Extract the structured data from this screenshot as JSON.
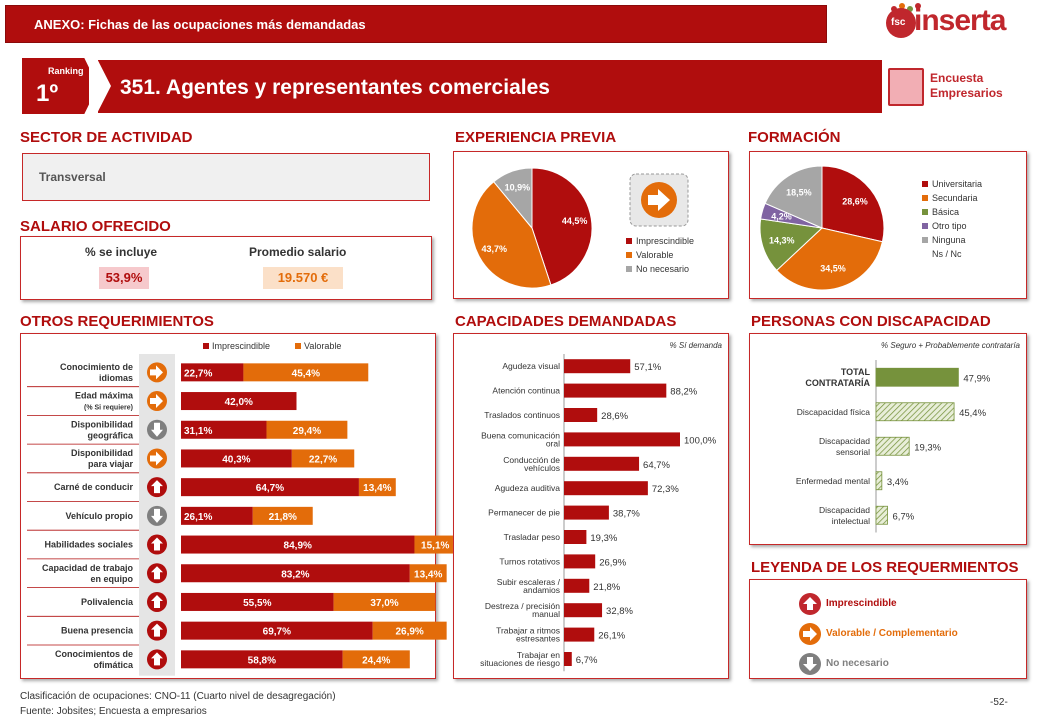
{
  "header": {
    "annex": "ANEXO: Fichas de las ocupaciones más demandadas",
    "logo": "inserta",
    "logo_sub": "fsc"
  },
  "ranking": {
    "label": "Ranking",
    "value": "1º"
  },
  "title": "351. Agentes y representantes comerciales",
  "encuesta": {
    "line1": "Encuesta",
    "line2": "Empresarios"
  },
  "sections": {
    "sector": "SECTOR DE ACTIVIDAD",
    "salario": "SALARIO OFRECIDO",
    "otros": "OTROS REQUERIMIENTOS",
    "experiencia": "EXPERIENCIA PREVIA",
    "formacion": "FORMACIÓN",
    "capacidades": "CAPACIDADES DEMANDADAS",
    "discapacidad": "PERSONAS CON DISCAPACIDAD",
    "leyenda": "LEYENDA DE LOS REQUERMIENTOS"
  },
  "sector_value": "Transversal",
  "salario": {
    "pct_label": "% se incluye",
    "pct_value": "53,9%",
    "avg_label": "Promedio salario",
    "avg_value": "19.570 €"
  },
  "colors": {
    "red": "#b00d0d",
    "orange": "#e36c0a",
    "gray": "#7f7f7f",
    "green": "#76923c",
    "purple": "#8064a2",
    "lightgray": "#a6a6a6"
  },
  "chart_data": [
    {
      "type": "pie",
      "id": "experiencia",
      "labels": [
        "Imprescindible",
        "Valorable",
        "No necesario"
      ],
      "values": [
        44.5,
        43.7,
        10.9
      ],
      "value_labels": [
        "44,5%",
        "43,7%",
        "10,9%"
      ]
    },
    {
      "type": "pie",
      "id": "formacion",
      "labels": [
        "Universitaria",
        "Secundaria",
        "Básica",
        "Otro tipo",
        "Ninguna",
        "Ns / Nc"
      ],
      "values": [
        28.6,
        34.5,
        14.3,
        4.2,
        18.5,
        0
      ],
      "value_labels": [
        "28,6%",
        "34,5%",
        "14,3%",
        "4,2%",
        "18,5%",
        ""
      ]
    },
    {
      "type": "bar",
      "id": "otros",
      "legend": [
        "Imprescindible",
        "Valorable"
      ],
      "categories": [
        [
          "Conocimiento de",
          "idiomas"
        ],
        [
          "Edad máxima",
          "(% Si requiere)"
        ],
        [
          "Disponibilidad",
          "geográfica"
        ],
        [
          "Disponibilidad",
          "para viajar"
        ],
        [
          "Carné de conducir"
        ],
        [
          "Vehículo propio"
        ],
        [
          "Habilidades sociales"
        ],
        [
          "Capacidad de trabajo",
          "en equipo"
        ],
        [
          "Polivalencia"
        ],
        [
          "Buena presencia"
        ],
        [
          "Conocimientos de",
          "ofimática"
        ]
      ],
      "imprescindible": [
        22.7,
        42.0,
        31.1,
        40.3,
        64.7,
        26.1,
        84.9,
        83.2,
        55.5,
        69.7,
        58.8
      ],
      "valorable": [
        45.4,
        null,
        29.4,
        22.7,
        13.4,
        21.8,
        15.1,
        13.4,
        37.0,
        26.9,
        24.4
      ],
      "imp_labels": [
        "22,7%",
        "42,0%",
        "31,1%",
        "40,3%",
        "64,7%",
        "26,1%",
        "84,9%",
        "83,2%",
        "55,5%",
        "69,7%",
        "58,8%"
      ],
      "val_labels": [
        "45,4%",
        "",
        "29,4%",
        "22,7%",
        "13,4%",
        "21,8%",
        "15,1%",
        "13,4%",
        "37,0%",
        "26,9%",
        "24,4%"
      ],
      "icons": [
        "orange",
        "orange",
        "gray",
        "orange",
        "red",
        "gray",
        "red",
        "red",
        "red",
        "red",
        "red"
      ]
    },
    {
      "type": "bar",
      "id": "capacidades",
      "note": "% Sí demanda",
      "categories": [
        [
          "Agudeza visual"
        ],
        [
          "Atención continua"
        ],
        [
          "Traslados continuos"
        ],
        [
          "Buena comunicación",
          "oral"
        ],
        [
          "Conducción de",
          "vehículos"
        ],
        [
          "Agudeza auditiva"
        ],
        [
          "Permanecer de pie"
        ],
        [
          "Trasladar peso"
        ],
        [
          "Turnos rotativos"
        ],
        [
          "Subir escaleras /",
          "andamios"
        ],
        [
          "Destreza / precisión",
          "manual"
        ],
        [
          "Trabajar a ritmos",
          "estresantes"
        ],
        [
          "Trabajar en",
          "situaciones de riesgo"
        ]
      ],
      "values": [
        57.1,
        88.2,
        28.6,
        100.0,
        64.7,
        72.3,
        38.7,
        19.3,
        26.9,
        21.8,
        32.8,
        26.1,
        6.7
      ],
      "value_labels": [
        "57,1%",
        "88,2%",
        "28,6%",
        "100,0%",
        "64,7%",
        "72,3%",
        "38,7%",
        "19,3%",
        "26,9%",
        "21,8%",
        "32,8%",
        "26,1%",
        "6,7%"
      ]
    },
    {
      "type": "bar",
      "id": "discapacidad",
      "note": "% Seguro + Probablemente contrataría",
      "categories": [
        [
          "TOTAL",
          "CONTRATARÍA"
        ],
        [
          "Discapacidad física"
        ],
        [
          "Discapacidad",
          "sensorial"
        ],
        [
          "Enfermedad mental"
        ],
        [
          "Discapacidad",
          "intelectual"
        ]
      ],
      "values": [
        47.9,
        45.4,
        19.3,
        3.4,
        6.7
      ],
      "value_labels": [
        "47,9%",
        "45,4%",
        "19,3%",
        "3,4%",
        "6,7%"
      ]
    }
  ],
  "leyenda": {
    "imprescindible": "Imprescindible",
    "valorable": "Valorable / Complementario",
    "no_necesario": "No necesario"
  },
  "footer": {
    "line1": "Clasificación de ocupaciones: CNO-11 (Cuarto nivel de desagregación)",
    "line2": "Fuente: Jobsites; Encuesta a empresarios",
    "page": "-52-"
  }
}
